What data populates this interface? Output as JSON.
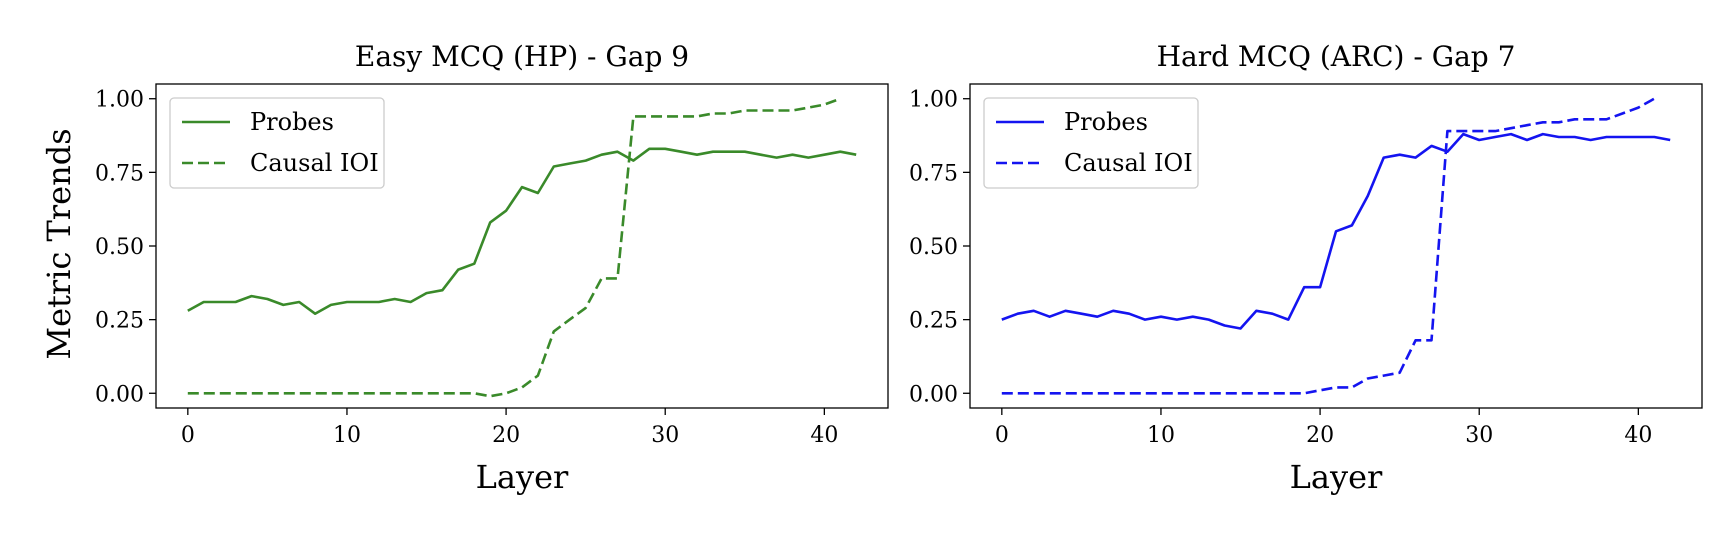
{
  "figure": {
    "ylabel": "Metric Trends"
  },
  "chart_data": [
    {
      "type": "line",
      "title": "Easy MCQ (HP) - Gap 9",
      "xlabel": "Layer",
      "ylabel": "Metric Trends",
      "xlim": [
        -2,
        44
      ],
      "ylim": [
        -0.05,
        1.05
      ],
      "xticks": [
        0,
        10,
        20,
        30,
        40
      ],
      "yticks": [
        0.0,
        0.25,
        0.5,
        0.75,
        1.0
      ],
      "ytick_labels": [
        "0.00",
        "0.25",
        "0.50",
        "0.75",
        "1.00"
      ],
      "legend_position": "upper-left",
      "color": "#3a8a2a",
      "series": [
        {
          "name": "Probes",
          "style": "solid",
          "x": [
            0,
            1,
            2,
            3,
            4,
            5,
            6,
            7,
            8,
            9,
            10,
            11,
            12,
            13,
            14,
            15,
            16,
            17,
            18,
            19,
            20,
            21,
            22,
            23,
            24,
            25,
            26,
            27,
            28,
            29,
            30,
            31,
            32,
            33,
            34,
            35,
            36,
            37,
            38,
            39,
            40,
            41,
            42
          ],
          "values": [
            0.28,
            0.31,
            0.31,
            0.31,
            0.33,
            0.32,
            0.3,
            0.31,
            0.27,
            0.3,
            0.31,
            0.31,
            0.31,
            0.32,
            0.31,
            0.34,
            0.35,
            0.42,
            0.44,
            0.58,
            0.62,
            0.7,
            0.68,
            0.77,
            0.78,
            0.79,
            0.81,
            0.82,
            0.79,
            0.83,
            0.83,
            0.82,
            0.81,
            0.82,
            0.82,
            0.82,
            0.81,
            0.8,
            0.81,
            0.8,
            0.81,
            0.82,
            0.81
          ]
        },
        {
          "name": "Causal IOI",
          "style": "dashed",
          "x": [
            0,
            1,
            2,
            3,
            4,
            5,
            6,
            7,
            8,
            9,
            10,
            11,
            12,
            13,
            14,
            15,
            16,
            17,
            18,
            19,
            20,
            21,
            22,
            23,
            24,
            25,
            26,
            27,
            28,
            29,
            30,
            31,
            32,
            33,
            34,
            35,
            36,
            37,
            38,
            39,
            40,
            41
          ],
          "values": [
            0.0,
            0.0,
            0.0,
            0.0,
            0.0,
            0.0,
            0.0,
            0.0,
            0.0,
            0.0,
            0.0,
            0.0,
            0.0,
            0.0,
            0.0,
            0.0,
            0.0,
            0.0,
            0.0,
            -0.01,
            0.0,
            0.02,
            0.06,
            0.21,
            0.25,
            0.29,
            0.39,
            0.39,
            0.94,
            0.94,
            0.94,
            0.94,
            0.94,
            0.95,
            0.95,
            0.96,
            0.96,
            0.96,
            0.96,
            0.97,
            0.98,
            1.0
          ]
        }
      ]
    },
    {
      "type": "line",
      "title": "Hard MCQ (ARC) - Gap 7",
      "xlabel": "Layer",
      "ylabel": "",
      "xlim": [
        -2,
        44
      ],
      "ylim": [
        -0.05,
        1.05
      ],
      "xticks": [
        0,
        10,
        20,
        30,
        40
      ],
      "yticks": [
        0.0,
        0.25,
        0.5,
        0.75,
        1.0
      ],
      "ytick_labels": [
        "0.00",
        "0.25",
        "0.50",
        "0.75",
        "1.00"
      ],
      "legend_position": "upper-left",
      "color": "#1414f0",
      "series": [
        {
          "name": "Probes",
          "style": "solid",
          "x": [
            0,
            1,
            2,
            3,
            4,
            5,
            6,
            7,
            8,
            9,
            10,
            11,
            12,
            13,
            14,
            15,
            16,
            17,
            18,
            19,
            20,
            21,
            22,
            23,
            24,
            25,
            26,
            27,
            28,
            29,
            30,
            31,
            32,
            33,
            34,
            35,
            36,
            37,
            38,
            39,
            40,
            41,
            42
          ],
          "values": [
            0.25,
            0.27,
            0.28,
            0.26,
            0.28,
            0.27,
            0.26,
            0.28,
            0.27,
            0.25,
            0.26,
            0.25,
            0.26,
            0.25,
            0.23,
            0.22,
            0.28,
            0.27,
            0.25,
            0.36,
            0.36,
            0.55,
            0.57,
            0.67,
            0.8,
            0.81,
            0.8,
            0.84,
            0.82,
            0.88,
            0.86,
            0.87,
            0.88,
            0.86,
            0.88,
            0.87,
            0.87,
            0.86,
            0.87,
            0.87,
            0.87,
            0.87,
            0.86
          ]
        },
        {
          "name": "Causal IOI",
          "style": "dashed",
          "x": [
            0,
            1,
            2,
            3,
            4,
            5,
            6,
            7,
            8,
            9,
            10,
            11,
            12,
            13,
            14,
            15,
            16,
            17,
            18,
            19,
            20,
            21,
            22,
            23,
            24,
            25,
            26,
            27,
            28,
            29,
            30,
            31,
            32,
            33,
            34,
            35,
            36,
            37,
            38,
            39,
            40,
            41
          ],
          "values": [
            0.0,
            0.0,
            0.0,
            0.0,
            0.0,
            0.0,
            0.0,
            0.0,
            0.0,
            0.0,
            0.0,
            0.0,
            0.0,
            0.0,
            0.0,
            0.0,
            0.0,
            0.0,
            0.0,
            0.0,
            0.01,
            0.02,
            0.02,
            0.05,
            0.06,
            0.07,
            0.18,
            0.18,
            0.89,
            0.89,
            0.89,
            0.89,
            0.9,
            0.91,
            0.92,
            0.92,
            0.93,
            0.93,
            0.93,
            0.95,
            0.97,
            1.0
          ]
        }
      ]
    }
  ]
}
